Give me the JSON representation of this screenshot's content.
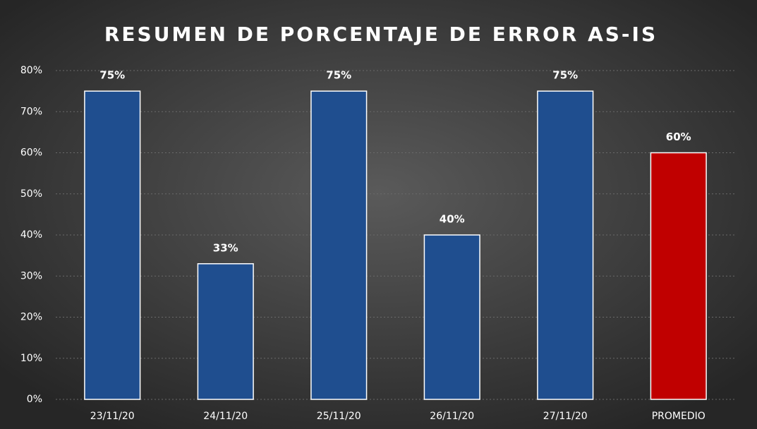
{
  "chart_data": {
    "type": "bar",
    "title": "RESUMEN DE PORCENTAJE DE ERROR AS-IS",
    "categories": [
      "23/11/20",
      "24/11/20",
      "25/11/20",
      "26/11/20",
      "27/11/20",
      "PROMEDIO"
    ],
    "values": [
      75,
      33,
      75,
      40,
      75,
      60
    ],
    "value_labels": [
      "75%",
      "33%",
      "75%",
      "40%",
      "75%",
      "60%"
    ],
    "colors": [
      "#1f4e8f",
      "#1f4e8f",
      "#1f4e8f",
      "#1f4e8f",
      "#1f4e8f",
      "#c00000"
    ],
    "ylim": [
      0,
      80
    ],
    "yticks": [
      {
        "value": 0,
        "label": "0%"
      },
      {
        "value": 10,
        "label": "10%"
      },
      {
        "value": 20,
        "label": "20%"
      },
      {
        "value": 30,
        "label": "30%"
      },
      {
        "value": 40,
        "label": "40%"
      },
      {
        "value": 50,
        "label": "50%"
      },
      {
        "value": 60,
        "label": "60%"
      },
      {
        "value": 70,
        "label": "70%"
      },
      {
        "value": 80,
        "label": "80%"
      }
    ],
    "grid": true
  }
}
